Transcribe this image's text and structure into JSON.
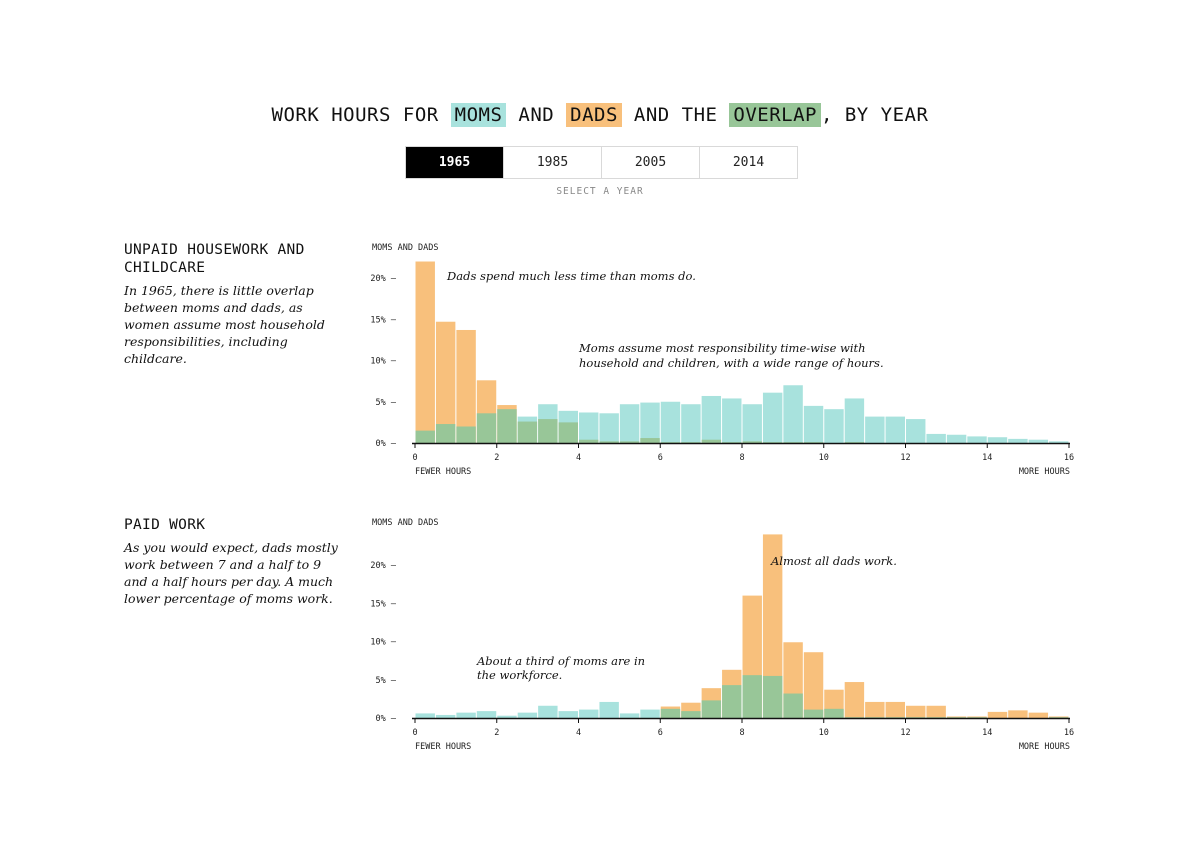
{
  "header": {
    "title_prefix": "WORK HOURS FOR",
    "moms": "MOMS",
    "and1": "AND",
    "dads": "DADS",
    "and_the": "AND THE",
    "overlap": "OVERLAP",
    "title_suffix": ", BY YEAR"
  },
  "year_selector": {
    "years": [
      "1965",
      "1985",
      "2005",
      "2014"
    ],
    "selected": "1965",
    "hint": "SELECT A YEAR"
  },
  "colors": {
    "moms": "#a8e2dd",
    "dads": "#f8c07c",
    "overlap": "#98c698",
    "axis": "#111111"
  },
  "sections": [
    {
      "title": "UNPAID HOUSEWORK AND CHILDCARE",
      "description": "In 1965, there is little overlap between moms and dads, as women assume most household responsibilities, including childcare."
    },
    {
      "title": "PAID WORK",
      "description": "As you would expect, dads mostly work between 7 and a half to 9 and a half hours per day. A much lower percentage of moms work."
    }
  ],
  "chart_data": [
    {
      "type": "bar",
      "title": "UNPAID HOUSEWORK AND CHILDCARE",
      "ylabel": "MOMS AND DADS",
      "x_left_label": "FEWER HOURS",
      "x_right_label": "MORE HOURS",
      "bin_width": 0.5,
      "x_range": [
        0,
        16
      ],
      "x_ticks": [
        0,
        2,
        4,
        6,
        8,
        10,
        12,
        14,
        16
      ],
      "y_ticks": [
        0,
        5,
        10,
        15,
        20
      ],
      "y_tick_labels": [
        "0%",
        "5%",
        "10%",
        "15%",
        "20%"
      ],
      "ylim": [
        0,
        22
      ],
      "series": [
        {
          "name": "MOMS",
          "values": [
            1.5,
            2.3,
            2.0,
            3.6,
            4.1,
            3.2,
            4.7,
            3.9,
            3.7,
            3.6,
            4.7,
            4.9,
            5.0,
            4.7,
            5.7,
            5.4,
            4.7,
            6.1,
            7.0,
            4.5,
            4.1,
            5.4,
            3.2,
            3.2,
            2.9,
            1.1,
            1.0,
            0.8,
            0.7,
            0.5,
            0.4,
            0.2
          ]
        },
        {
          "name": "DADS",
          "values": [
            22.0,
            14.7,
            13.7,
            7.6,
            4.6,
            2.6,
            2.9,
            2.5,
            0.4,
            0.2,
            0.2,
            0.6,
            0.1,
            0.1,
            0.4,
            0.1,
            0.2,
            0.1,
            0.1,
            0.1,
            0.0,
            0.1,
            0.0,
            0.0,
            0.0,
            0.0,
            0.0,
            0.0,
            0.0,
            0.0,
            0.0,
            0.0
          ]
        }
      ],
      "annotations": [
        "Dads spend much less time than moms do.",
        "Moms assume most responsibility time-wise with",
        "household and children, with a wide range of hours."
      ]
    },
    {
      "type": "bar",
      "title": "PAID WORK",
      "ylabel": "MOMS AND DADS",
      "x_left_label": "FEWER HOURS",
      "x_right_label": "MORE HOURS",
      "bin_width": 0.5,
      "x_range": [
        0,
        16
      ],
      "x_ticks": [
        0,
        2,
        4,
        6,
        8,
        10,
        12,
        14,
        16
      ],
      "y_ticks": [
        0,
        5,
        10,
        15,
        20
      ],
      "y_tick_labels": [
        "0%",
        "5%",
        "10%",
        "15%",
        "20%"
      ],
      "ylim": [
        0,
        24.5
      ],
      "series": [
        {
          "name": "MOMS",
          "values": [
            0.6,
            0.4,
            0.7,
            0.9,
            0.3,
            0.7,
            1.6,
            0.9,
            1.1,
            2.1,
            0.6,
            1.1,
            1.2,
            0.9,
            2.3,
            4.3,
            5.6,
            5.5,
            3.2,
            1.1,
            1.2,
            0.1,
            0.1,
            0.1,
            0.1,
            0.1,
            0.1,
            0.1,
            0.0,
            0.0,
            0.0,
            0.1
          ]
        },
        {
          "name": "DADS",
          "values": [
            0.0,
            0.0,
            0.0,
            0.0,
            0.0,
            0.0,
            0.0,
            0.0,
            0.0,
            0.0,
            0.0,
            0.0,
            1.5,
            2.0,
            3.9,
            6.3,
            16.0,
            24.0,
            9.9,
            8.6,
            3.7,
            4.7,
            2.1,
            2.1,
            1.6,
            1.6,
            0.2,
            0.2,
            0.8,
            1.0,
            0.7,
            0.2
          ]
        }
      ],
      "annotations": [
        "Almost all dads work.",
        "About a third of moms are in",
        "the workforce."
      ]
    }
  ]
}
